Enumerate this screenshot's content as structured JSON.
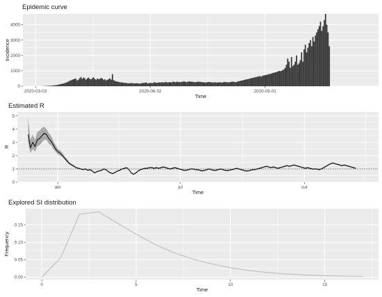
{
  "chart_data": [
    {
      "type": "bar",
      "title": "Epidemic curve",
      "xlabel": "Time",
      "ylabel": "Incidence",
      "x_range": [
        "2020-02-22",
        "2020-11-30"
      ],
      "ylim": [
        0,
        4700
      ],
      "x_ticks": [
        "2020-03-03",
        "2020-06-02",
        "2020-09-01"
      ],
      "y_ticks": [
        0,
        1000,
        2000,
        3000,
        4000
      ],
      "x_tick_labels": [
        "2020-03-03",
        "2020-06-02",
        "2020-09-01"
      ],
      "y_tick_labels": [
        "0",
        "1000",
        "2000",
        "3000",
        "4000"
      ],
      "grid": true,
      "bar_color": "#3a3a3a",
      "series": [
        {
          "start_date": "2020-03-06",
          "values": [
            0,
            0,
            5,
            8,
            10,
            15,
            20,
            25,
            30,
            35,
            40,
            50,
            60,
            70,
            80,
            100,
            120,
            140,
            160,
            180,
            200,
            230,
            260,
            300,
            350,
            380,
            420,
            450,
            480,
            500,
            380,
            420,
            520,
            600,
            480,
            560,
            520,
            420,
            500,
            560,
            480,
            450,
            520,
            580,
            480,
            420,
            500,
            460,
            480,
            540,
            500,
            420,
            450,
            380,
            420,
            460,
            520,
            430,
            780,
            400,
            340,
            320,
            300,
            280,
            260,
            250,
            240,
            230,
            220,
            210,
            200,
            190,
            200,
            210,
            200,
            190,
            180,
            200,
            190,
            180,
            170,
            200,
            210,
            220,
            230,
            240,
            180,
            200,
            220,
            210,
            200,
            260,
            240,
            220,
            230,
            250,
            240,
            260,
            250,
            240,
            280,
            260,
            240,
            270,
            260,
            250,
            300,
            280,
            260,
            300,
            280,
            270,
            260,
            290,
            300,
            310,
            290,
            260,
            300,
            320,
            290,
            300,
            280,
            270,
            260,
            280,
            300,
            290,
            280,
            270,
            260,
            250,
            240,
            260,
            280,
            270,
            260,
            250,
            240,
            260,
            250,
            240,
            250,
            260,
            250,
            240,
            260,
            280,
            270,
            260,
            250,
            260,
            280,
            300,
            290,
            280,
            260,
            300,
            320,
            340,
            360,
            380,
            400,
            420,
            440,
            460,
            480,
            500,
            520,
            540,
            560,
            580,
            600,
            620,
            640,
            660,
            620,
            680,
            700,
            720,
            740,
            760,
            780,
            800,
            820,
            850,
            880,
            900,
            920,
            950,
            1000,
            980,
            1000,
            1050,
            1100,
            1200,
            1400,
            1800,
            1600,
            1200,
            1900,
            1300,
            1400,
            1600,
            2000,
            1400,
            1500,
            1700,
            2200,
            1600,
            2400,
            2700,
            2200,
            2500,
            2800,
            3000,
            2600,
            3200,
            2900,
            3300,
            3500,
            3700,
            3900,
            4200,
            3600,
            3900,
            4300,
            4700,
            4000,
            3500,
            2600
          ]
        }
      ]
    },
    {
      "type": "line",
      "title": "Estimated R",
      "xlabel": "Time",
      "ylabel": "R",
      "x_range": [
        "2020-03-02",
        "2020-11-25"
      ],
      "ylim": [
        0,
        5.3
      ],
      "x_ticks": [
        "2020-04-01",
        "2020-07-01",
        "2020-10-01"
      ],
      "x_tick_labels": [
        "abr",
        "jul",
        "out"
      ],
      "y_ticks": [
        0,
        1,
        2,
        3,
        4,
        5
      ],
      "y_tick_labels": [
        "0",
        "1",
        "2",
        "3",
        "4",
        "5"
      ],
      "reference_line": 1,
      "grid": true,
      "line_color": "#000000",
      "band_color": "#9e9e9e",
      "series": [
        {
          "start_date": "2020-03-10",
          "mean": [
            3.6,
            2.6,
            3.0,
            2.7,
            3.2,
            3.3,
            3.5,
            3.7,
            3.6,
            3.3,
            3.1,
            2.8,
            2.5,
            2.3,
            2.2,
            2.0,
            1.8,
            1.6,
            1.4,
            1.3,
            1.2,
            1.1,
            1.05,
            1.0,
            0.95,
            1.0,
            0.9,
            0.95,
            0.85,
            0.7,
            0.8,
            0.85,
            0.9,
            1.0,
            0.95,
            0.8,
            0.7,
            0.65,
            0.75,
            0.85,
            0.9,
            1.0,
            1.05,
            1.1,
            0.95,
            0.7,
            0.6,
            0.7,
            0.85,
            0.95,
            1.0,
            1.05,
            1.05,
            1.1,
            1.1,
            1.05,
            1.1,
            1.05,
            1.1,
            1.15,
            1.1,
            1.05,
            1.0,
            1.05,
            1.1,
            1.05,
            1.0,
            0.95,
            0.9,
            0.9,
            0.95,
            1.0,
            1.0,
            0.95,
            0.95,
            0.9,
            0.85,
            0.9,
            0.95,
            1.0,
            0.95,
            0.9,
            0.9,
            0.95,
            1.0,
            0.95,
            0.9,
            0.88,
            0.92,
            0.95,
            1.0,
            1.05,
            1.0,
            0.95,
            0.9,
            0.85,
            0.85,
            0.9,
            0.95,
            0.95,
            1.0,
            1.05,
            1.1,
            1.15,
            1.2,
            1.15,
            1.1,
            1.15,
            1.1,
            1.05,
            1.1,
            1.15,
            1.2,
            1.25,
            1.2,
            1.25,
            1.3,
            1.25,
            1.2,
            1.15,
            1.1,
            1.05,
            1.1,
            1.05,
            1.0,
            1.0,
            1.0,
            0.95,
            1.0,
            1.1,
            1.2,
            1.3,
            1.4,
            1.45,
            1.4,
            1.35,
            1.3,
            1.25,
            1.3,
            1.25,
            1.2,
            1.15,
            1.1,
            1.05
          ],
          "lower": [
            3.0,
            2.2,
            2.5,
            2.3,
            2.7,
            2.8,
            3.0,
            3.2,
            3.2,
            2.9,
            2.8,
            2.5,
            2.3,
            2.1,
            2.0,
            1.9,
            1.7,
            1.5,
            1.35,
            1.25,
            1.15,
            1.05,
            1.0,
            0.95,
            0.9,
            0.95,
            0.85,
            0.9,
            0.8,
            0.65,
            0.75,
            0.8,
            0.85,
            0.95,
            0.9,
            0.75,
            0.65,
            0.6,
            0.7,
            0.8,
            0.85,
            0.95,
            1.0,
            1.05,
            0.9,
            0.65,
            0.55,
            0.65,
            0.8,
            0.9,
            0.95,
            1.0,
            1.0,
            1.05,
            1.05,
            1.0,
            1.05,
            1.0,
            1.05,
            1.1,
            1.05,
            1.0,
            0.95,
            1.0,
            1.05,
            1.0,
            0.95,
            0.9,
            0.85,
            0.85,
            0.9,
            0.95,
            0.95,
            0.9,
            0.9,
            0.85,
            0.8,
            0.85,
            0.9,
            0.95,
            0.9,
            0.85,
            0.85,
            0.9,
            0.95,
            0.9,
            0.85,
            0.83,
            0.87,
            0.9,
            0.95,
            1.0,
            0.95,
            0.9,
            0.85,
            0.8,
            0.8,
            0.85,
            0.9,
            0.9,
            0.95,
            1.0,
            1.05,
            1.1,
            1.15,
            1.1,
            1.05,
            1.1,
            1.05,
            1.0,
            1.05,
            1.1,
            1.15,
            1.2,
            1.15,
            1.2,
            1.25,
            1.2,
            1.15,
            1.1,
            1.05,
            1.0,
            1.05,
            1.0,
            0.95,
            0.95,
            0.95,
            0.9,
            0.95,
            1.05,
            1.15,
            1.25,
            1.35,
            1.4,
            1.35,
            1.3,
            1.25,
            1.2,
            1.25,
            1.2,
            1.15,
            1.1,
            1.05,
            1.0
          ],
          "upper": [
            4.9,
            3.2,
            3.6,
            3.2,
            3.8,
            3.9,
            4.1,
            4.2,
            4.0,
            3.7,
            3.5,
            3.1,
            2.8,
            2.5,
            2.4,
            2.2,
            1.95,
            1.75,
            1.5,
            1.4,
            1.3,
            1.15,
            1.1,
            1.05,
            1.0,
            1.05,
            0.95,
            1.0,
            0.9,
            0.75,
            0.85,
            0.9,
            0.95,
            1.05,
            1.0,
            0.85,
            0.75,
            0.7,
            0.8,
            0.9,
            0.95,
            1.05,
            1.1,
            1.15,
            1.0,
            0.75,
            0.65,
            0.75,
            0.9,
            1.0,
            1.05,
            1.1,
            1.1,
            1.15,
            1.15,
            1.1,
            1.15,
            1.1,
            1.15,
            1.2,
            1.15,
            1.1,
            1.05,
            1.1,
            1.15,
            1.1,
            1.05,
            1.0,
            0.95,
            0.95,
            1.0,
            1.05,
            1.05,
            1.0,
            1.0,
            0.95,
            0.9,
            0.95,
            1.0,
            1.05,
            1.0,
            0.95,
            0.95,
            1.0,
            1.05,
            1.0,
            0.95,
            0.93,
            0.97,
            1.0,
            1.05,
            1.1,
            1.05,
            1.0,
            0.95,
            0.9,
            0.9,
            0.95,
            1.0,
            1.0,
            1.05,
            1.1,
            1.15,
            1.2,
            1.25,
            1.2,
            1.15,
            1.2,
            1.15,
            1.1,
            1.15,
            1.2,
            1.25,
            1.3,
            1.25,
            1.3,
            1.35,
            1.3,
            1.25,
            1.2,
            1.15,
            1.1,
            1.15,
            1.1,
            1.05,
            1.05,
            1.05,
            1.0,
            1.05,
            1.15,
            1.25,
            1.35,
            1.45,
            1.5,
            1.45,
            1.4,
            1.35,
            1.3,
            1.35,
            1.3,
            1.25,
            1.2,
            1.15,
            1.1
          ]
        }
      ]
    },
    {
      "type": "line",
      "title": "Explored SI distribution",
      "xlabel": "Time",
      "ylabel": "Frequency",
      "xlim": [
        -0.85,
        17.85
      ],
      "ylim": [
        -0.007,
        0.196
      ],
      "x_ticks": [
        0,
        5,
        10,
        15
      ],
      "x_tick_labels": [
        "0",
        "5",
        "10",
        "15"
      ],
      "y_ticks": [
        0,
        0.05,
        0.1,
        0.15
      ],
      "y_tick_labels": [
        "0.00",
        "0.05",
        "0.10",
        "0.15"
      ],
      "grid": true,
      "line_color": "#bdbdbd",
      "series": [
        {
          "x": [
            0,
            1,
            2,
            3,
            4,
            5,
            6,
            7,
            8,
            9,
            10,
            11,
            12,
            13,
            14,
            15,
            16,
            17
          ],
          "y": [
            0.0,
            0.055,
            0.18,
            0.187,
            0.155,
            0.123,
            0.094,
            0.07,
            0.052,
            0.038,
            0.027,
            0.019,
            0.013,
            0.009,
            0.006,
            0.004,
            0.003,
            0.002
          ]
        }
      ]
    }
  ]
}
